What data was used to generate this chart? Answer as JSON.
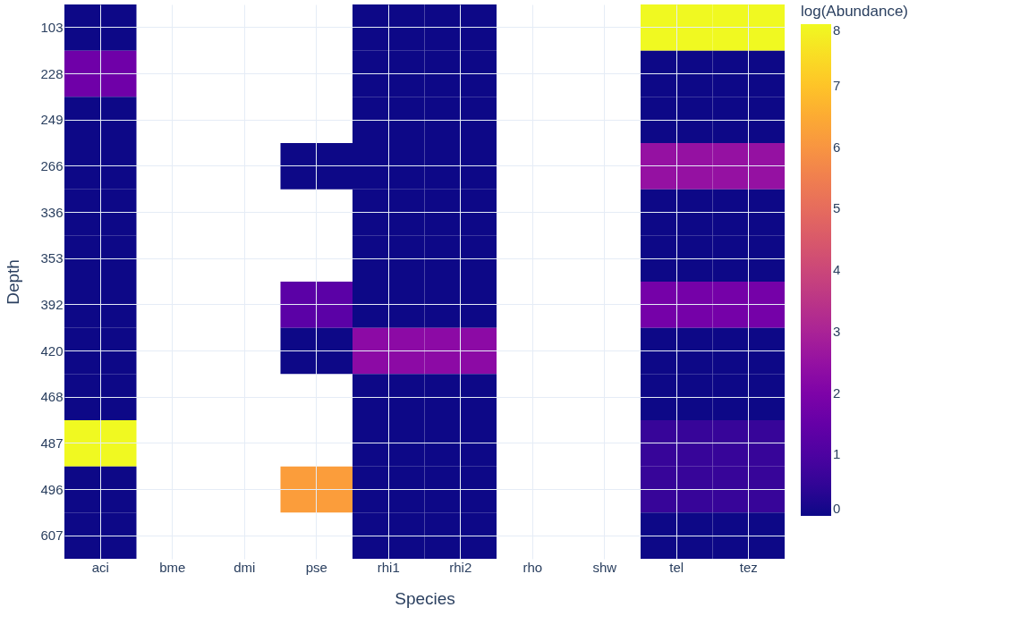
{
  "chart_data": {
    "type": "heatmap",
    "xlabel": "Species",
    "ylabel": "Depth",
    "clabel": "log(Abundance)",
    "categories": [
      "aci",
      "bme",
      "dmi",
      "pse",
      "rhi1",
      "rhi2",
      "rho",
      "shw",
      "tel",
      "tez"
    ],
    "y_categories": [
      "103",
      "228",
      "249",
      "266",
      "336",
      "353",
      "392",
      "420",
      "468",
      "487",
      "496",
      "607"
    ],
    "cells": [
      [
        0,
        null,
        null,
        null,
        0,
        0,
        null,
        null,
        8,
        8
      ],
      [
        1.7,
        null,
        null,
        null,
        0,
        0,
        null,
        null,
        0,
        0
      ],
      [
        0,
        null,
        null,
        null,
        0,
        0,
        null,
        null,
        0,
        0
      ],
      [
        0,
        null,
        null,
        0,
        0,
        0,
        null,
        null,
        2.5,
        2.5
      ],
      [
        0,
        null,
        null,
        null,
        0,
        0,
        null,
        null,
        0,
        0
      ],
      [
        0,
        null,
        null,
        null,
        0,
        0,
        null,
        null,
        0,
        0
      ],
      [
        0,
        null,
        null,
        1.3,
        0,
        0,
        null,
        null,
        1.8,
        1.8
      ],
      [
        0,
        null,
        null,
        0,
        2.3,
        2.3,
        null,
        null,
        0,
        0
      ],
      [
        0,
        null,
        null,
        null,
        0,
        0,
        null,
        null,
        0,
        0
      ],
      [
        8,
        null,
        null,
        null,
        0,
        0,
        null,
        null,
        0.6,
        0.6
      ],
      [
        0,
        null,
        null,
        6.2,
        0,
        0,
        null,
        null,
        0.6,
        0.6
      ],
      [
        0,
        null,
        null,
        null,
        0,
        0,
        null,
        null,
        0,
        0
      ]
    ],
    "clim": [
      0,
      8
    ],
    "cticks": [
      0,
      1,
      2,
      3,
      4,
      5,
      6,
      7,
      8
    ],
    "grid": true
  }
}
